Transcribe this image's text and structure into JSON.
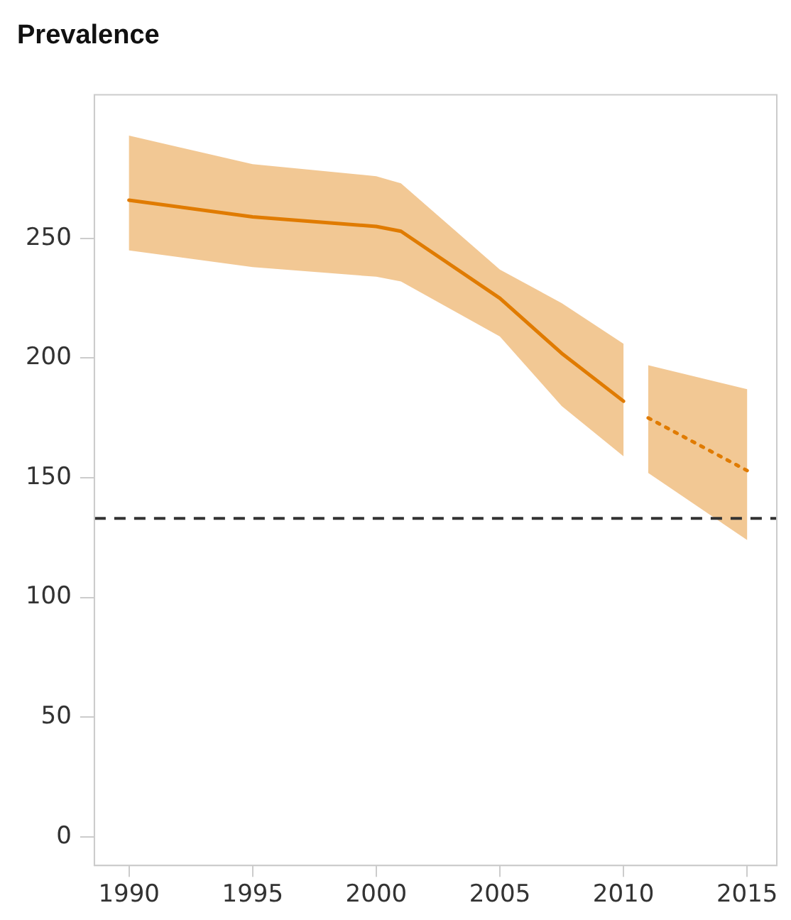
{
  "chart_data": {
    "type": "line",
    "title": "Prevalence",
    "xlim": [
      1988.6,
      2016.2
    ],
    "xticks": [
      1990,
      1995,
      2000,
      2005,
      2010,
      2015
    ],
    "ylim": [
      -12,
      310
    ],
    "yticks": [
      0,
      50,
      100,
      150,
      200,
      250
    ],
    "grid": false,
    "legend": false,
    "marker": "none",
    "series": [
      {
        "color": "#e07b00",
        "line_style": "solid",
        "x": [
          1990,
          1995,
          2000,
          2001,
          2005,
          2007.5,
          2010
        ],
        "values": [
          266,
          259,
          255,
          253,
          225,
          202,
          182
        ],
        "lower": [
          245,
          238,
          234,
          232,
          209,
          180,
          159
        ],
        "upper": [
          293,
          281,
          276,
          273,
          237,
          223,
          206
        ]
      },
      {
        "color": "#e07b00",
        "line_style": "dotted",
        "x": [
          2011,
          2015
        ],
        "values": [
          175,
          153
        ],
        "lower": [
          152,
          124
        ],
        "upper": [
          197,
          187
        ]
      }
    ],
    "ref_lines": [
      {
        "axis": "y",
        "value": 133,
        "color": "#333333",
        "line_style": "dashed"
      }
    ]
  }
}
